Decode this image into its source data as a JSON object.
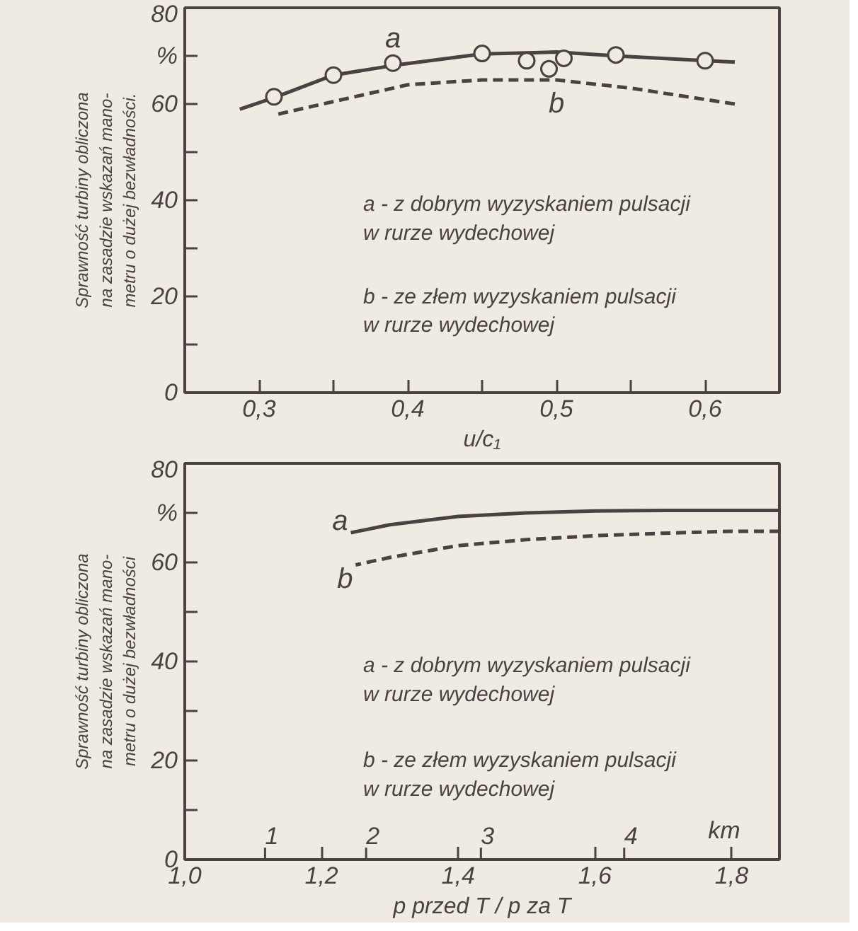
{
  "chart_data": [
    {
      "type": "line",
      "xlabel": "u/c₁",
      "ylabel": "Sprawność turbiny obliczona\nna zasadzie wskazań mano-\nmetru o dużej bezwładności.",
      "xlim": [
        0.25,
        0.65
      ],
      "ylim": [
        0,
        80
      ],
      "xticks": [
        {
          "value": 0.3,
          "label": "0,3"
        },
        {
          "value": 0.35,
          "label": null
        },
        {
          "value": 0.4,
          "label": "0,4"
        },
        {
          "value": 0.45,
          "label": null
        },
        {
          "value": 0.5,
          "label": "0,5"
        },
        {
          "value": 0.55,
          "label": null
        },
        {
          "value": 0.6,
          "label": "0,6"
        }
      ],
      "yticks": [
        0,
        {
          "value": 10,
          "label": null
        },
        20,
        {
          "value": 30,
          "label": null
        },
        40,
        {
          "value": 50,
          "label": null
        },
        60,
        {
          "value": 70,
          "label": "%"
        },
        80
      ],
      "grid": false,
      "legend": false,
      "annotations": [
        "a - z dobrym wyzyskaniem pulsacji\nw rurze wydechowej",
        "b - ze złem wyzyskaniem pulsacji\nw rurze wydechowej"
      ],
      "series": [
        {
          "name": "a",
          "line_style": "solid",
          "color": "#4a4242",
          "x": [
            0.287,
            0.31,
            0.35,
            0.39,
            0.45,
            0.5,
            0.54,
            0.6,
            0.62
          ],
          "values": [
            58.9,
            61.3,
            66,
            68,
            70.4,
            70.8,
            70,
            69,
            68.7
          ]
        },
        {
          "name": "b",
          "line_style": "dashed",
          "color": "#4a4242",
          "x": [
            0.31,
            0.4,
            0.45,
            0.5,
            0.55,
            0.62
          ],
          "values": [
            57.7,
            64,
            65,
            65,
            63.3,
            60
          ]
        },
        {
          "type": "scatter",
          "marker": "circle",
          "color": "#4a4242",
          "x": [
            0.31,
            0.35,
            0.39,
            0.45,
            0.48,
            0.495,
            0.505,
            0.54,
            0.6
          ],
          "values": [
            61.5,
            66,
            68.5,
            70.5,
            69,
            67.3,
            69.5,
            70.2,
            69
          ]
        }
      ]
    },
    {
      "type": "line",
      "xlabel": "p przed T / p za T",
      "ylabel": "Sprawność turbiny obliczona\nna zasadzie wskazań mano-\nmetru o dużej bezwładności",
      "xlim": [
        1.0,
        1.87
      ],
      "ylim": [
        0,
        80
      ],
      "xticks": [
        {
          "value": 1.0,
          "label": "1,0"
        },
        {
          "value": 1.2,
          "label": "1,2"
        },
        {
          "value": 1.4,
          "label": "1,4"
        },
        {
          "value": 1.6,
          "label": "1,6"
        },
        {
          "value": 1.8,
          "label": "1,8"
        }
      ],
      "yticks": [
        0,
        {
          "value": 10,
          "label": null
        },
        20,
        {
          "value": 30,
          "label": null
        },
        40,
        {
          "value": 50,
          "label": null
        },
        60,
        {
          "value": 70,
          "label": "%"
        },
        80
      ],
      "grid": false,
      "legend": false,
      "annotations": [
        "a - z dobrym wyzyskaniem pulsacji\nw rurze wydechowej",
        "b - ze złem wyzyskaniem pulsacji\nw rurze wydechowej",
        "1",
        "2",
        "3",
        "4",
        "km"
      ],
      "series": [
        {
          "name": "a",
          "line_style": "solid",
          "color": "#4a4242",
          "x": [
            1.243,
            1.3,
            1.4,
            1.5,
            1.6,
            1.7,
            1.8,
            1.87
          ],
          "values": [
            66,
            67.6,
            69.3,
            70,
            70.4,
            70.5,
            70.5,
            70.5
          ]
        },
        {
          "name": "b",
          "line_style": "dashed",
          "color": "#4a4242",
          "x": [
            1.25,
            1.3,
            1.4,
            1.5,
            1.6,
            1.7,
            1.8,
            1.87
          ],
          "values": [
            59.5,
            61,
            63.4,
            64.6,
            65.4,
            65.9,
            66.3,
            66.3
          ]
        }
      ]
    }
  ]
}
